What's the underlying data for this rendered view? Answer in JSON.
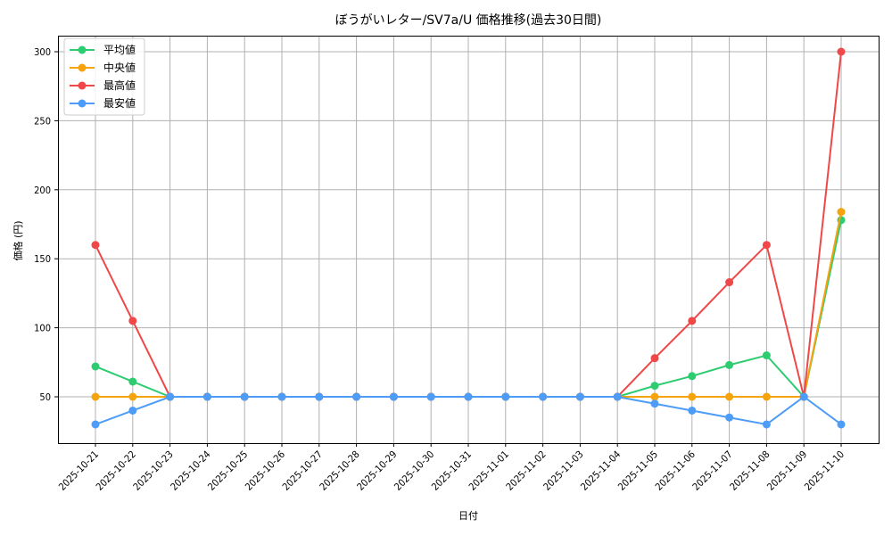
{
  "chart_data": {
    "type": "line",
    "title": "ぼうがいレター/SV7a/U 価格推移(過去30日間)",
    "xlabel": "日付",
    "ylabel": "価格 (円)",
    "ylim": [
      15,
      312
    ],
    "yticks": [
      50,
      100,
      150,
      200,
      250,
      300
    ],
    "grid": true,
    "legend_position": "upper left",
    "categories": [
      "2025-10-21",
      "2025-10-22",
      "2025-10-23",
      "2025-10-24",
      "2025-10-25",
      "2025-10-26",
      "2025-10-27",
      "2025-10-28",
      "2025-10-29",
      "2025-10-30",
      "2025-10-31",
      "2025-11-01",
      "2025-11-02",
      "2025-11-03",
      "2025-11-04",
      "2025-11-05",
      "2025-11-06",
      "2025-11-07",
      "2025-11-08",
      "2025-11-09",
      "2025-11-10"
    ],
    "series": [
      {
        "name": "平均値",
        "color": "#2ecc71",
        "values": [
          72,
          61,
          50,
          50,
          50,
          50,
          50,
          50,
          50,
          50,
          50,
          50,
          50,
          50,
          50,
          58,
          65,
          73,
          80,
          50,
          178
        ]
      },
      {
        "name": "中央値",
        "color": "#f5a30f",
        "values": [
          50,
          50,
          50,
          50,
          50,
          50,
          50,
          50,
          50,
          50,
          50,
          50,
          50,
          50,
          50,
          50,
          50,
          50,
          50,
          50,
          184
        ]
      },
      {
        "name": "最高値",
        "color": "#f04848",
        "values": [
          160,
          105,
          50,
          50,
          50,
          50,
          50,
          50,
          50,
          50,
          50,
          50,
          50,
          50,
          50,
          78,
          105,
          133,
          160,
          50,
          300
        ]
      },
      {
        "name": "最安値",
        "color": "#4c9cf8",
        "values": [
          30,
          40,
          50,
          50,
          50,
          50,
          50,
          50,
          50,
          50,
          50,
          50,
          50,
          50,
          50,
          45,
          40,
          35,
          30,
          50,
          30
        ]
      }
    ]
  }
}
